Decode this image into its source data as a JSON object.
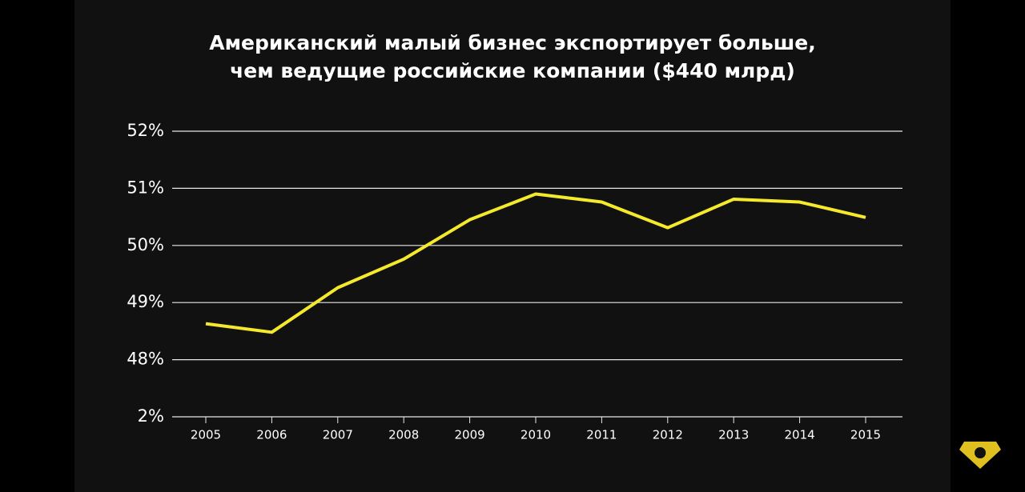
{
  "chart_data": {
    "type": "line",
    "title": [
      "Американский малый бизнес экспортирует больше,",
      "чем ведущие российские компании ($440 млрд)"
    ],
    "categories": [
      "2005",
      "2006",
      "2007",
      "2008",
      "2009",
      "2010",
      "2011",
      "2012",
      "2013",
      "2014",
      "2015"
    ],
    "series": [
      {
        "color": "#f5e92c",
        "values": [
          48.63,
          48.48,
          49.26,
          49.76,
          50.45,
          50.9,
          50.76,
          50.31,
          50.81,
          50.76,
          50.49
        ]
      }
    ],
    "ylim": [
      2,
      52
    ],
    "axis_break": [
      2,
      48
    ],
    "yticks": [
      {
        "value": 2,
        "label": "2%"
      },
      {
        "value": 48,
        "label": "48%"
      },
      {
        "value": 49,
        "label": "49%"
      },
      {
        "value": 50,
        "label": "50%"
      },
      {
        "value": 51,
        "label": "51%"
      },
      {
        "value": 52,
        "label": "52%"
      }
    ],
    "grid": true
  }
}
